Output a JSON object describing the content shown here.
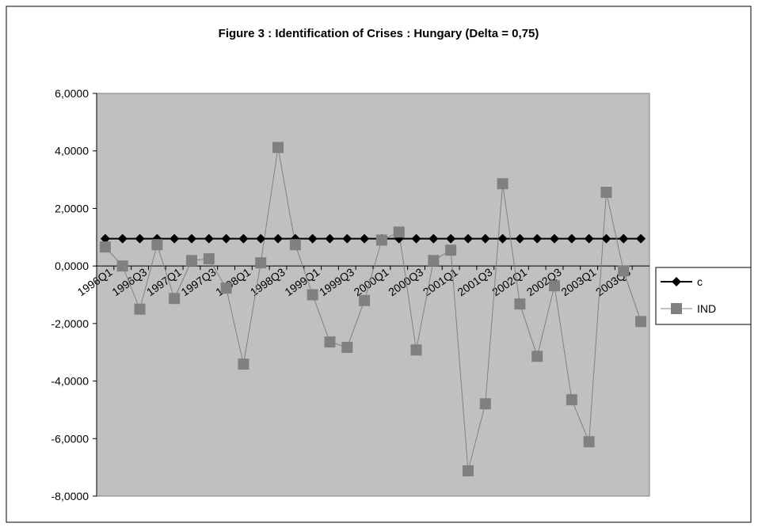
{
  "chart_data": {
    "type": "line",
    "title": "Figure 3 : Identification of Crises : Hungary (Delta = 0,75)",
    "categories": [
      "1996Q1",
      null,
      "1996Q3",
      null,
      "1997Q1",
      null,
      "1997Q3",
      null,
      "1998Q1",
      null,
      "1998Q3",
      null,
      "1999Q1",
      null,
      "1999Q3",
      null,
      "2000Q1",
      null,
      "2000Q3",
      null,
      "2001Q1",
      null,
      "2001Q3",
      null,
      "2002Q1",
      null,
      "2002Q3",
      null,
      "2003Q1",
      null,
      "2003Q3",
      null
    ],
    "series": [
      {
        "name": "c",
        "color": "#000000",
        "marker": "diamond",
        "values": [
          0.95,
          0.95,
          0.95,
          0.95,
          0.95,
          0.95,
          0.95,
          0.95,
          0.95,
          0.95,
          0.95,
          0.95,
          0.95,
          0.95,
          0.95,
          0.95,
          0.95,
          0.95,
          0.95,
          0.95,
          0.95,
          0.95,
          0.95,
          0.95,
          0.95,
          0.95,
          0.95,
          0.95,
          0.95,
          0.95,
          0.95,
          0.95
        ]
      },
      {
        "name": "IND",
        "color": "#808080",
        "marker": "square",
        "values": [
          0.66,
          0.0,
          -1.5,
          0.74,
          -1.13,
          0.19,
          0.25,
          -0.77,
          -3.41,
          0.11,
          4.12,
          0.74,
          -1.0,
          -2.64,
          -2.83,
          -1.2,
          0.9,
          1.18,
          -2.92,
          0.19,
          0.55,
          -7.12,
          -4.79,
          2.86,
          -1.32,
          -3.14,
          -0.69,
          -4.65,
          -6.11,
          2.56,
          -0.17,
          -1.93
        ]
      }
    ],
    "ylim": [
      -8,
      6
    ],
    "yticks": [
      {
        "value": -8,
        "label": "-8,0000"
      },
      {
        "value": -6,
        "label": "-6,0000"
      },
      {
        "value": -4,
        "label": "-4,0000"
      },
      {
        "value": -2,
        "label": "-2,0000"
      },
      {
        "value": 0,
        "label": "0,0000"
      },
      {
        "value": 2,
        "label": "2,0000"
      },
      {
        "value": 4,
        "label": "4,0000"
      },
      {
        "value": 6,
        "label": "6,0000"
      }
    ],
    "legend": "right"
  }
}
